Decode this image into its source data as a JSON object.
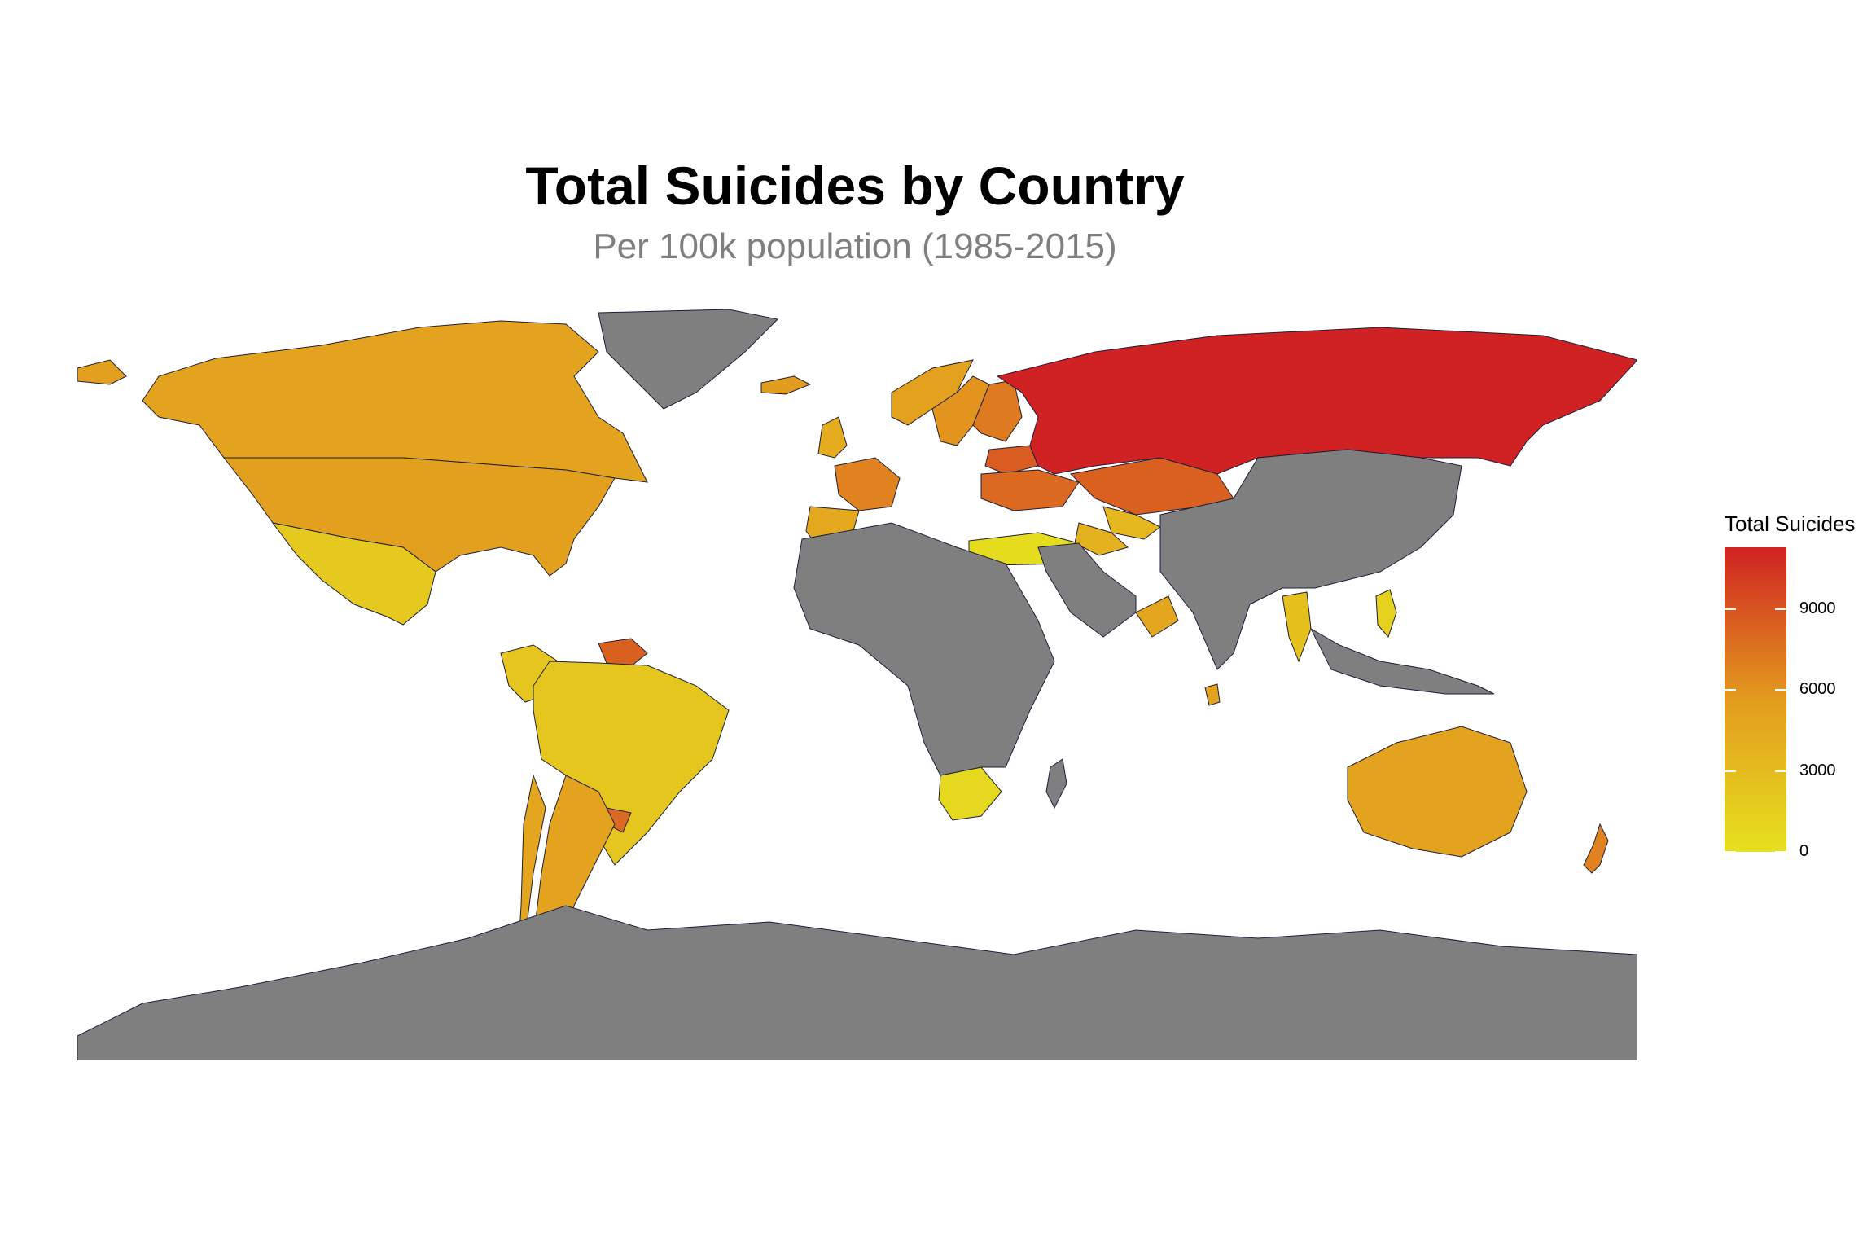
{
  "title": "Total Suicides by Country",
  "subtitle": "Per 100k population (1985-2015)",
  "legend": {
    "title": "Total Suicides",
    "ticks": [
      {
        "value": 0,
        "label": "0"
      },
      {
        "value": 3000,
        "label": "3000"
      },
      {
        "value": 6000,
        "label": "6000"
      },
      {
        "value": 9000,
        "label": "9000"
      }
    ],
    "range": [
      0,
      11300
    ],
    "colors": {
      "low": "#e6e11e",
      "mid": "#e39b1e",
      "high": "#d02222"
    }
  },
  "no_data_color": "#7f7f7f",
  "border_color": "#1c1f3a",
  "chart_data": {
    "type": "choropleth",
    "regions": [
      {
        "name": "Russia",
        "value": 11300
      },
      {
        "name": "Japan",
        "value": 9300
      },
      {
        "name": "Kazakhstan",
        "value": 8400
      },
      {
        "name": "Ukraine",
        "value": 8000
      },
      {
        "name": "Suriname",
        "value": 8400
      },
      {
        "name": "Uruguay",
        "value": 8000
      },
      {
        "name": "Finland",
        "value": 7200
      },
      {
        "name": "France",
        "value": 6800
      },
      {
        "name": "New Zealand",
        "value": 6800
      },
      {
        "name": "Belarus",
        "value": 8600
      },
      {
        "name": "United States",
        "value": 5300
      },
      {
        "name": "Canada",
        "value": 5000
      },
      {
        "name": "Argentina",
        "value": 5000
      },
      {
        "name": "Chile",
        "value": 4800
      },
      {
        "name": "Australia",
        "value": 5000
      },
      {
        "name": "Iceland",
        "value": 5500
      },
      {
        "name": "Sweden",
        "value": 6000
      },
      {
        "name": "Norway",
        "value": 5200
      },
      {
        "name": "Spain",
        "value": 4600
      },
      {
        "name": "United Kingdom",
        "value": 4300
      },
      {
        "name": "Oman",
        "value": 4800
      },
      {
        "name": "Turkmenistan",
        "value": 3800
      },
      {
        "name": "Uzbekistan",
        "value": 3300
      },
      {
        "name": "Sri Lanka",
        "value": 5000
      },
      {
        "name": "Brazil",
        "value": 2200
      },
      {
        "name": "Colombia",
        "value": 2300
      },
      {
        "name": "Mexico",
        "value": 1900
      },
      {
        "name": "Thailand",
        "value": 2600
      },
      {
        "name": "Philippines",
        "value": 1200
      },
      {
        "name": "South Africa",
        "value": 700
      },
      {
        "name": "Turkey",
        "value": 400
      }
    ]
  }
}
